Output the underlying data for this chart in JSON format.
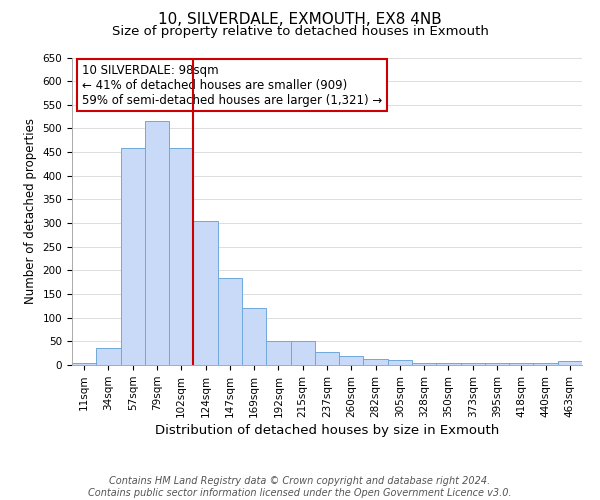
{
  "title": "10, SILVERDALE, EXMOUTH, EX8 4NB",
  "subtitle": "Size of property relative to detached houses in Exmouth",
  "xlabel": "Distribution of detached houses by size in Exmouth",
  "ylabel": "Number of detached properties",
  "bar_labels": [
    "11sqm",
    "34sqm",
    "57sqm",
    "79sqm",
    "102sqm",
    "124sqm",
    "147sqm",
    "169sqm",
    "192sqm",
    "215sqm",
    "237sqm",
    "260sqm",
    "282sqm",
    "305sqm",
    "328sqm",
    "350sqm",
    "373sqm",
    "395sqm",
    "418sqm",
    "440sqm",
    "463sqm"
  ],
  "bar_values": [
    5,
    35,
    458,
    515,
    458,
    305,
    183,
    120,
    50,
    50,
    28,
    20,
    13,
    10,
    5,
    5,
    5,
    5,
    5,
    5,
    8
  ],
  "bar_color": "#c9daf8",
  "bar_edge_color": "#6fa8dc",
  "vline_x_idx": 4,
  "vline_color": "#cc0000",
  "ylim": [
    0,
    650
  ],
  "yticks": [
    0,
    50,
    100,
    150,
    200,
    250,
    300,
    350,
    400,
    450,
    500,
    550,
    600,
    650
  ],
  "annotation_title": "10 SILVERDALE: 98sqm",
  "annotation_line1": "← 41% of detached houses are smaller (909)",
  "annotation_line2": "59% of semi-detached houses are larger (1,321) →",
  "box_color": "#ffffff",
  "box_edge_color": "#cc0000",
  "footer_line1": "Contains HM Land Registry data © Crown copyright and database right 2024.",
  "footer_line2": "Contains public sector information licensed under the Open Government Licence v3.0.",
  "title_fontsize": 11,
  "subtitle_fontsize": 9.5,
  "xlabel_fontsize": 9.5,
  "ylabel_fontsize": 8.5,
  "tick_fontsize": 7.5,
  "annotation_fontsize": 8.5,
  "footer_fontsize": 7
}
